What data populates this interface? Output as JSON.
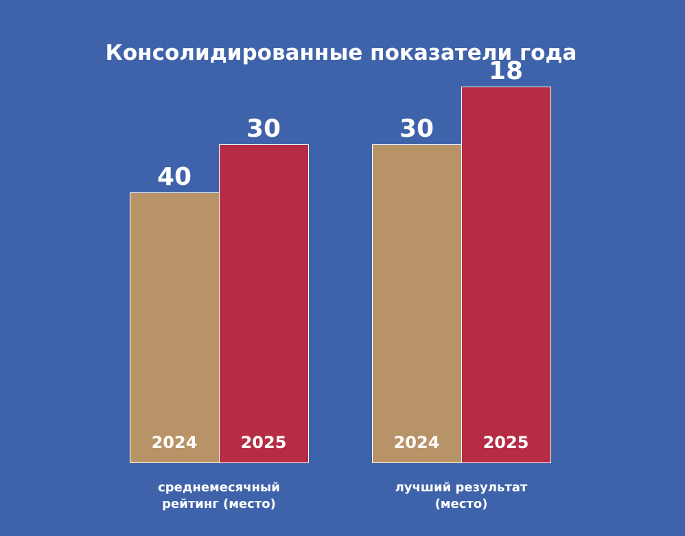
{
  "colors": {
    "background": "#3f63aa",
    "year_2024": "#b89367",
    "year_2025": "#b52c44",
    "bar_border": "#ffffff",
    "text": "#ffffff"
  },
  "chart_data": {
    "type": "bar",
    "title": "Консолидированные показатели года",
    "series_names": [
      "2024",
      "2025"
    ],
    "groups": [
      {
        "label_lines": [
          "среднемесячный",
          "рейтинг (место)"
        ],
        "bars": [
          {
            "year": "2024",
            "value": 40,
            "display": "40"
          },
          {
            "year": "2025",
            "value": 30,
            "display": "30"
          }
        ]
      },
      {
        "label_lines": [
          "лучший результат",
          "(место)"
        ],
        "bars": [
          {
            "year": "2024",
            "value": 30,
            "display": "30"
          },
          {
            "year": "2025",
            "value": 18,
            "display": "18"
          }
        ]
      }
    ]
  }
}
